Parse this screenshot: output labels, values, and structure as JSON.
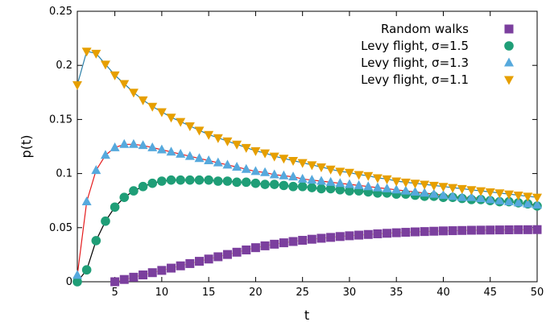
{
  "chart_data": {
    "type": "scatter",
    "xlabel": "t",
    "ylabel": "p(t)",
    "xlim": [
      1,
      50
    ],
    "ylim": [
      0,
      0.25
    ],
    "xticks": [
      5,
      10,
      15,
      20,
      25,
      30,
      35,
      40,
      45,
      50
    ],
    "yticks": [
      0,
      0.05,
      0.1,
      0.15,
      0.2,
      0.25
    ],
    "xtick_labels": [
      "5",
      "10",
      "15",
      "20",
      "25",
      "30",
      "35",
      "40",
      "45",
      "50"
    ],
    "ytick_labels": [
      "0",
      "0.05",
      "0.1",
      "0.15",
      "0.2",
      "0.25"
    ],
    "grid": false,
    "legend_position": "top-right",
    "series": [
      {
        "name": "Random walks",
        "marker": "square",
        "color": "#7b3f9e",
        "fit_color": "#e8c070",
        "x": [
          5,
          6,
          7,
          8,
          9,
          10,
          11,
          12,
          13,
          14,
          15,
          16,
          17,
          18,
          19,
          20,
          21,
          22,
          23,
          24,
          25,
          26,
          27,
          28,
          29,
          30,
          31,
          32,
          33,
          34,
          35,
          36,
          37,
          38,
          39,
          40,
          41,
          42,
          43,
          44,
          45,
          46,
          47,
          48,
          49,
          50
        ],
        "y": [
          0.0,
          0.0021,
          0.0042,
          0.0063,
          0.0084,
          0.0105,
          0.0126,
          0.0147,
          0.0168,
          0.0189,
          0.021,
          0.0231,
          0.0252,
          0.0273,
          0.0294,
          0.0315,
          0.0332,
          0.0347,
          0.036,
          0.0372,
          0.0383,
          0.0393,
          0.0402,
          0.041,
          0.0418,
          0.0425,
          0.0431,
          0.0437,
          0.0443,
          0.0448,
          0.0453,
          0.0457,
          0.0461,
          0.0464,
          0.0467,
          0.047,
          0.0472,
          0.0474,
          0.0476,
          0.0477,
          0.0478,
          0.0479,
          0.048,
          0.0481,
          0.0481,
          0.0482
        ]
      },
      {
        "name": "Levy flight, σ=1.5",
        "marker": "circle",
        "color": "#1f9e77",
        "fit_color": "#000000",
        "x": [
          1,
          2,
          3,
          4,
          5,
          6,
          7,
          8,
          9,
          10,
          11,
          12,
          13,
          14,
          15,
          16,
          17,
          18,
          19,
          20,
          21,
          22,
          23,
          24,
          25,
          26,
          27,
          28,
          29,
          30,
          31,
          32,
          33,
          34,
          35,
          36,
          37,
          38,
          39,
          40,
          41,
          42,
          43,
          44,
          45,
          46,
          47,
          48,
          49,
          50
        ],
        "y": [
          0.0,
          0.011,
          0.038,
          0.056,
          0.069,
          0.078,
          0.084,
          0.088,
          0.091,
          0.093,
          0.094,
          0.094,
          0.094,
          0.094,
          0.094,
          0.093,
          0.093,
          0.092,
          0.092,
          0.091,
          0.09,
          0.09,
          0.089,
          0.088,
          0.088,
          0.087,
          0.086,
          0.086,
          0.085,
          0.084,
          0.084,
          0.083,
          0.082,
          0.082,
          0.081,
          0.081,
          0.08,
          0.079,
          0.079,
          0.078,
          0.078,
          0.077,
          0.076,
          0.076,
          0.075,
          0.074,
          0.074,
          0.073,
          0.072,
          0.07
        ]
      },
      {
        "name": "Levy flight, σ=1.3",
        "marker": "triangle-up",
        "color": "#56a9dd",
        "fit_color": "#e41a1c",
        "x": [
          1,
          2,
          3,
          4,
          5,
          6,
          7,
          8,
          9,
          10,
          11,
          12,
          13,
          14,
          15,
          16,
          17,
          18,
          19,
          20,
          21,
          22,
          23,
          24,
          25,
          26,
          27,
          28,
          29,
          30,
          31,
          32,
          33,
          34,
          35,
          36,
          37,
          38,
          39,
          40,
          41,
          42,
          43,
          44,
          45,
          46,
          47,
          48,
          49,
          50
        ],
        "y": [
          0.006,
          0.074,
          0.103,
          0.117,
          0.124,
          0.127,
          0.127,
          0.126,
          0.124,
          0.122,
          0.12,
          0.118,
          0.116,
          0.114,
          0.112,
          0.11,
          0.108,
          0.106,
          0.104,
          0.102,
          0.101,
          0.099,
          0.098,
          0.097,
          0.095,
          0.094,
          0.093,
          0.092,
          0.091,
          0.09,
          0.089,
          0.088,
          0.087,
          0.086,
          0.085,
          0.084,
          0.083,
          0.082,
          0.081,
          0.08,
          0.079,
          0.078,
          0.078,
          0.077,
          0.076,
          0.075,
          0.074,
          0.073,
          0.072,
          0.071
        ]
      },
      {
        "name": "Levy flight, σ=1.1",
        "marker": "triangle-down",
        "color": "#e69f00",
        "fit_color": "#2a7fa8",
        "x": [
          1,
          2,
          3,
          4,
          5,
          6,
          7,
          8,
          9,
          10,
          11,
          12,
          13,
          14,
          15,
          16,
          17,
          18,
          19,
          20,
          21,
          22,
          23,
          24,
          25,
          26,
          27,
          28,
          29,
          30,
          31,
          32,
          33,
          34,
          35,
          36,
          37,
          38,
          39,
          40,
          41,
          42,
          43,
          44,
          45,
          46,
          47,
          48,
          49,
          50
        ],
        "y": [
          0.182,
          0.213,
          0.211,
          0.201,
          0.191,
          0.183,
          0.175,
          0.168,
          0.162,
          0.157,
          0.152,
          0.148,
          0.144,
          0.14,
          0.136,
          0.133,
          0.13,
          0.127,
          0.124,
          0.121,
          0.119,
          0.116,
          0.114,
          0.112,
          0.11,
          0.108,
          0.106,
          0.104,
          0.102,
          0.101,
          0.099,
          0.098,
          0.096,
          0.095,
          0.093,
          0.092,
          0.091,
          0.09,
          0.089,
          0.088,
          0.087,
          0.086,
          0.085,
          0.084,
          0.083,
          0.082,
          0.081,
          0.08,
          0.079,
          0.078
        ]
      }
    ]
  }
}
